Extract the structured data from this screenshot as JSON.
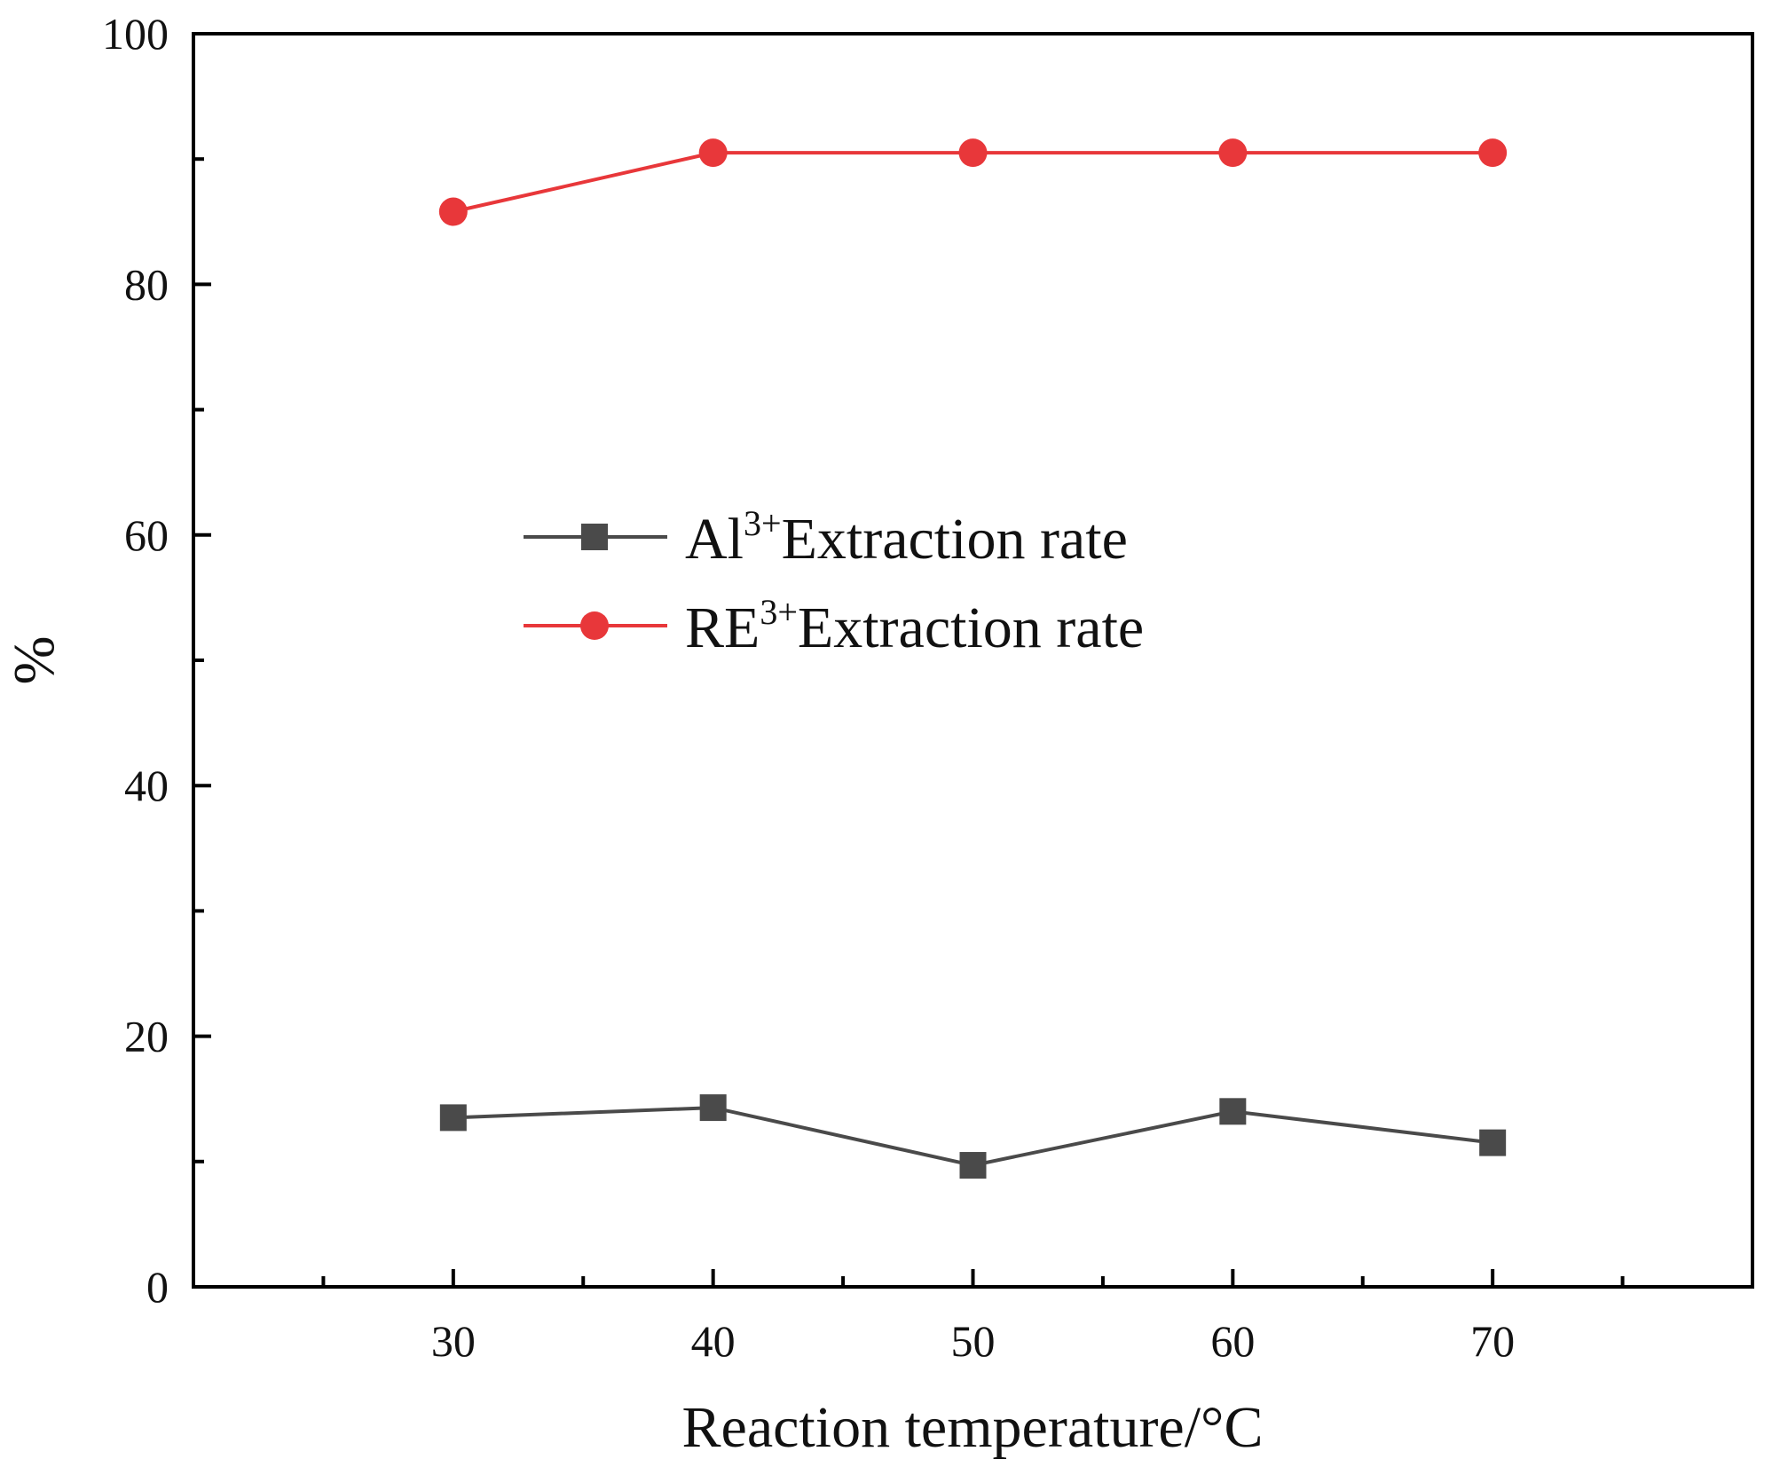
{
  "chart_data": {
    "type": "line",
    "title": "",
    "xlabel": "Reaction temperature/°C",
    "ylabel": "%",
    "x": [
      30,
      40,
      50,
      60,
      70
    ],
    "xlim": [
      20,
      80
    ],
    "ylim": [
      0,
      100
    ],
    "x_ticks": [
      "30",
      "40",
      "50",
      "60",
      "70"
    ],
    "y_ticks": [
      "0",
      "20",
      "40",
      "60",
      "80",
      "100"
    ],
    "grid": false,
    "legend_position": "center-left",
    "series": [
      {
        "name": "Al3+Extraction rate",
        "label_base": "Al",
        "label_sup": "3+",
        "label_rest": "Extraction rate",
        "marker": "square",
        "color": "#4a4a4a",
        "values": [
          13.5,
          14.3,
          9.7,
          14.0,
          11.5
        ]
      },
      {
        "name": "RE3+Extraction rate",
        "label_base": "RE",
        "label_sup": "3+",
        "label_rest": "Extraction rate",
        "marker": "circle",
        "color": "#e8373a",
        "values": [
          85.8,
          90.5,
          90.5,
          90.5,
          90.5
        ]
      }
    ]
  }
}
